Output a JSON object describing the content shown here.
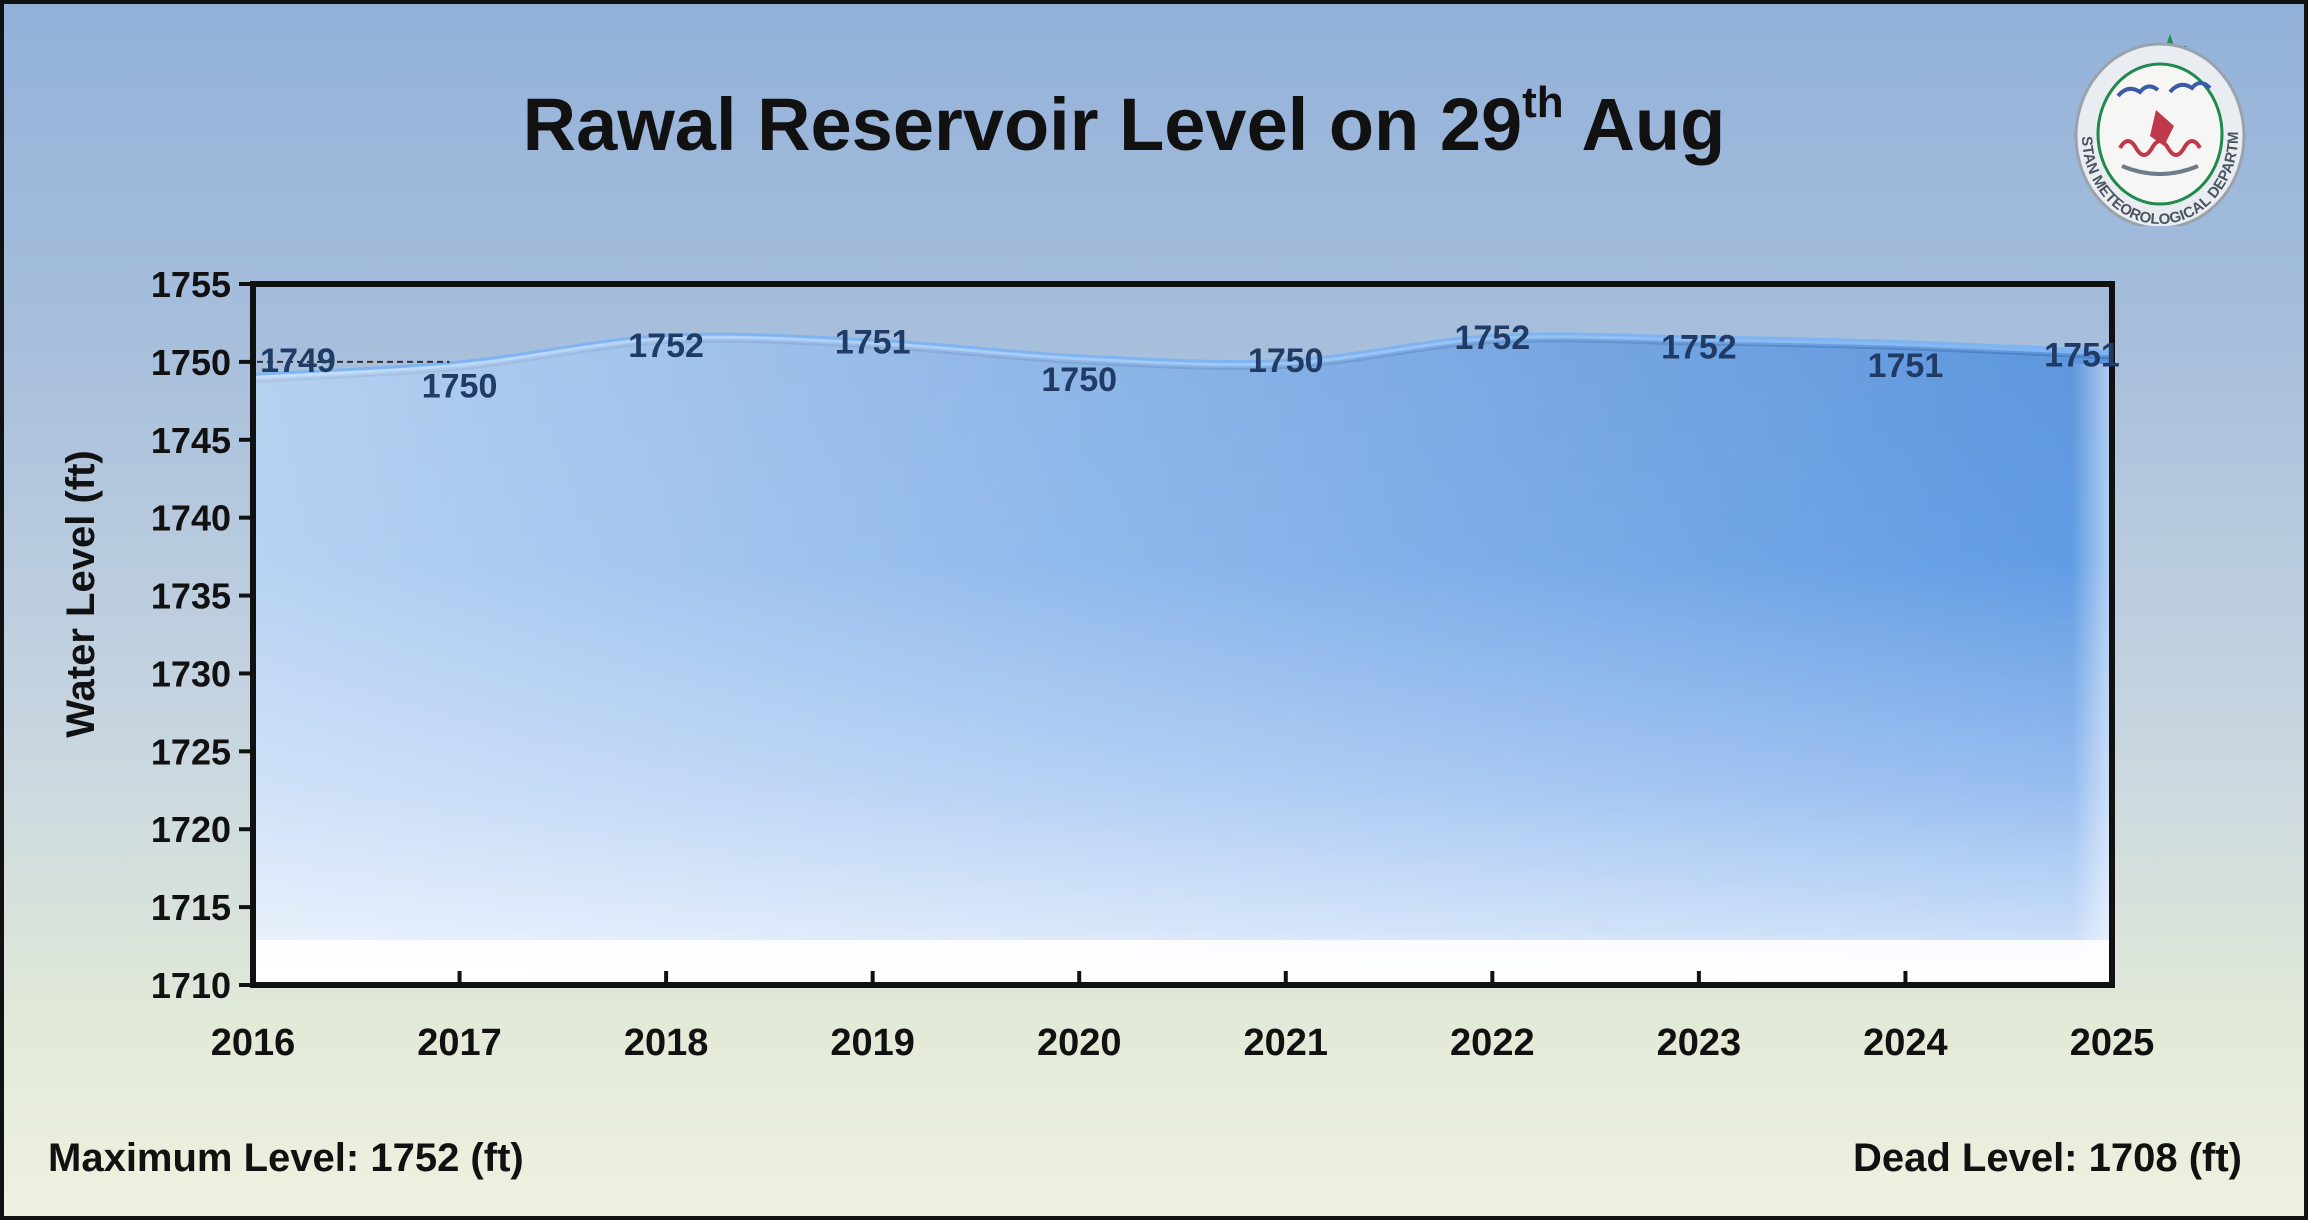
{
  "chart_data": {
    "type": "area",
    "title_main": "Rawal Reservoir Level on 29",
    "title_sup": "th",
    "title_end": " Aug",
    "ylabel": "Water Level (ft)",
    "xlabel": "",
    "x": [
      "2016",
      "2017",
      "2018",
      "2019",
      "2020",
      "2021",
      "2022",
      "2023",
      "2024",
      "2025"
    ],
    "values": [
      1749,
      1750,
      1752,
      1751,
      1750,
      1750,
      1752,
      1752,
      1751,
      1751
    ],
    "plot_values": [
      1749.1,
      1749.9,
      1751.6,
      1751.3,
      1750.3,
      1750.0,
      1751.6,
      1751.5,
      1751.2,
      1750.6
    ],
    "data_labels": [
      "1749",
      "1750",
      "1752",
      "1751",
      "1750",
      "1750",
      "1752",
      "1752",
      "1751",
      "1751"
    ],
    "ylim": [
      1710,
      1755
    ],
    "yticks": [
      1755,
      1750,
      1745,
      1740,
      1735,
      1730,
      1725,
      1720,
      1715,
      1710
    ],
    "grid": false,
    "legend": "none",
    "fill_color": "#5a98e0",
    "line_color": "#7fb4f2",
    "label_color": "#1f3b66"
  },
  "footer": {
    "max_level": "Maximum Level: 1752 (ft)",
    "dead_level": "Dead Level: 1708 (ft)"
  },
  "logo": {
    "icon": "pmd-seal-icon",
    "text": "PAKISTAN METEOROLOGICAL DEPARTMENT"
  }
}
